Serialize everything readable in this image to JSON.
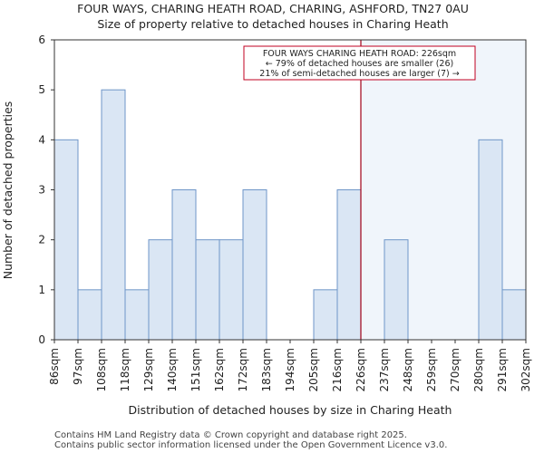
{
  "chart_data": {
    "type": "bar",
    "title": "FOUR WAYS, CHARING HEATH ROAD, CHARING, ASHFORD, TN27 0AU",
    "subtitle": "Size of property relative to detached houses in Charing Heath",
    "xlabel": "Distribution of detached houses by size in Charing Heath",
    "ylabel": "Number of detached properties",
    "bin_edges": [
      "86sqm",
      "97sqm",
      "108sqm",
      "118sqm",
      "129sqm",
      "140sqm",
      "151sqm",
      "162sqm",
      "172sqm",
      "183sqm",
      "194sqm",
      "205sqm",
      "216sqm",
      "226sqm",
      "237sqm",
      "248sqm",
      "259sqm",
      "270sqm",
      "280sqm",
      "291sqm",
      "302sqm"
    ],
    "values": [
      4,
      1,
      5,
      1,
      2,
      3,
      2,
      2,
      3,
      0,
      0,
      1,
      3,
      0,
      2,
      0,
      0,
      0,
      4,
      1
    ],
    "ylim": [
      0,
      6
    ],
    "yticks": [
      0,
      1,
      2,
      3,
      4,
      5,
      6
    ],
    "marker": {
      "value_label": "226sqm",
      "bin_index": 13
    },
    "annotation": {
      "lines": [
        "FOUR WAYS CHARING HEATH ROAD: 226sqm",
        "← 79% of detached houses are smaller (26)",
        "21% of semi-detached houses are larger (7) →"
      ]
    },
    "colors": {
      "bar_fill": "#dae6f4",
      "bar_stroke": "#6f96c8",
      "marker_line": "#a00018",
      "highlight_region": "#f0f5fb",
      "annotation_border": "#c00020"
    }
  },
  "footer": {
    "line1": "Contains HM Land Registry data © Crown copyright and database right 2025.",
    "line2": "Contains public sector information licensed under the Open Government Licence v3.0."
  }
}
